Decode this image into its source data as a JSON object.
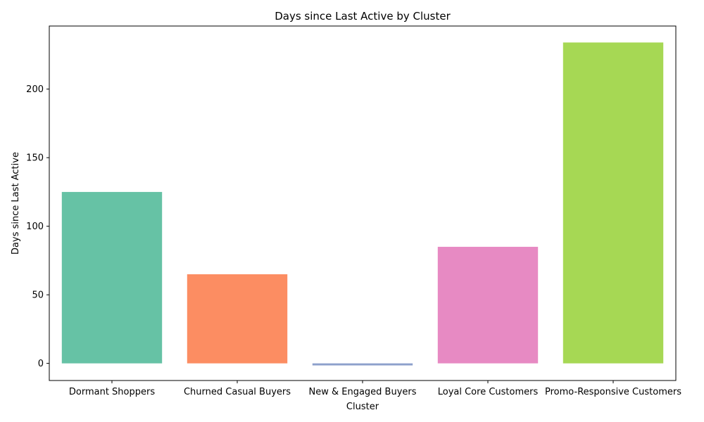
{
  "chart_data": {
    "type": "bar",
    "title": "Days since Last Active by Cluster",
    "xlabel": "Cluster",
    "ylabel": "Days since Last Active",
    "categories": [
      "Dormant Shoppers",
      "Churned Casual Buyers",
      "New & Engaged Buyers",
      "Loyal Core Customers",
      "Promo-Responsive Customers"
    ],
    "values": [
      125,
      65,
      -1.5,
      85,
      234
    ],
    "colors": [
      "#66c2a5",
      "#fc8d62",
      "#8da0cb",
      "#e78ac3",
      "#a6d854"
    ],
    "ylim": [
      -12.5,
      246
    ],
    "yticks": [
      0,
      50,
      100,
      150,
      200
    ],
    "grid": false,
    "legend": "none"
  }
}
